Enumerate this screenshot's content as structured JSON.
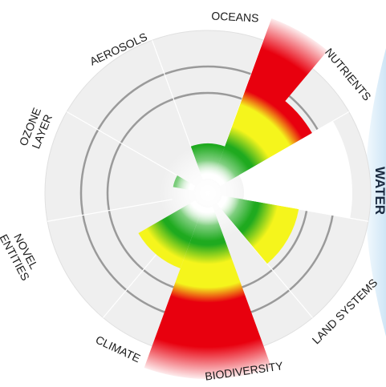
{
  "diagram": {
    "title": "",
    "labels": {
      "oceans": "OCEANS",
      "nutrients": "NUTRIENTS",
      "water": "WATER",
      "land_systems": "LAND SYSTEMS",
      "biodiversity": "BIODIVERSITY",
      "climate": "CLIMATE",
      "novel_entities": "NOVEL ENTITIES",
      "ozone_layer": "OZONE LAYER",
      "aerosols": "AEROSOLS"
    },
    "zone_colors": {
      "safe": "#1faa1f",
      "increasing_risk": "#f5f51c",
      "high_risk": "#e8000e",
      "background_disc": "#efefef",
      "water_panel": "#e3f1fb"
    },
    "boundary_status": [
      {
        "name": "Oceans",
        "level": "safe"
      },
      {
        "name": "Nutrients",
        "level": "beyond"
      },
      {
        "name": "Water",
        "level": "unquantified"
      },
      {
        "name": "Land systems",
        "level": "increasing"
      },
      {
        "name": "Biodiversity",
        "level": "beyond"
      },
      {
        "name": "Climate",
        "level": "increasing"
      },
      {
        "name": "Novel entities",
        "level": "unquantified"
      },
      {
        "name": "Ozone layer",
        "level": "safe"
      },
      {
        "name": "Aerosols",
        "level": "unquantified"
      }
    ]
  }
}
